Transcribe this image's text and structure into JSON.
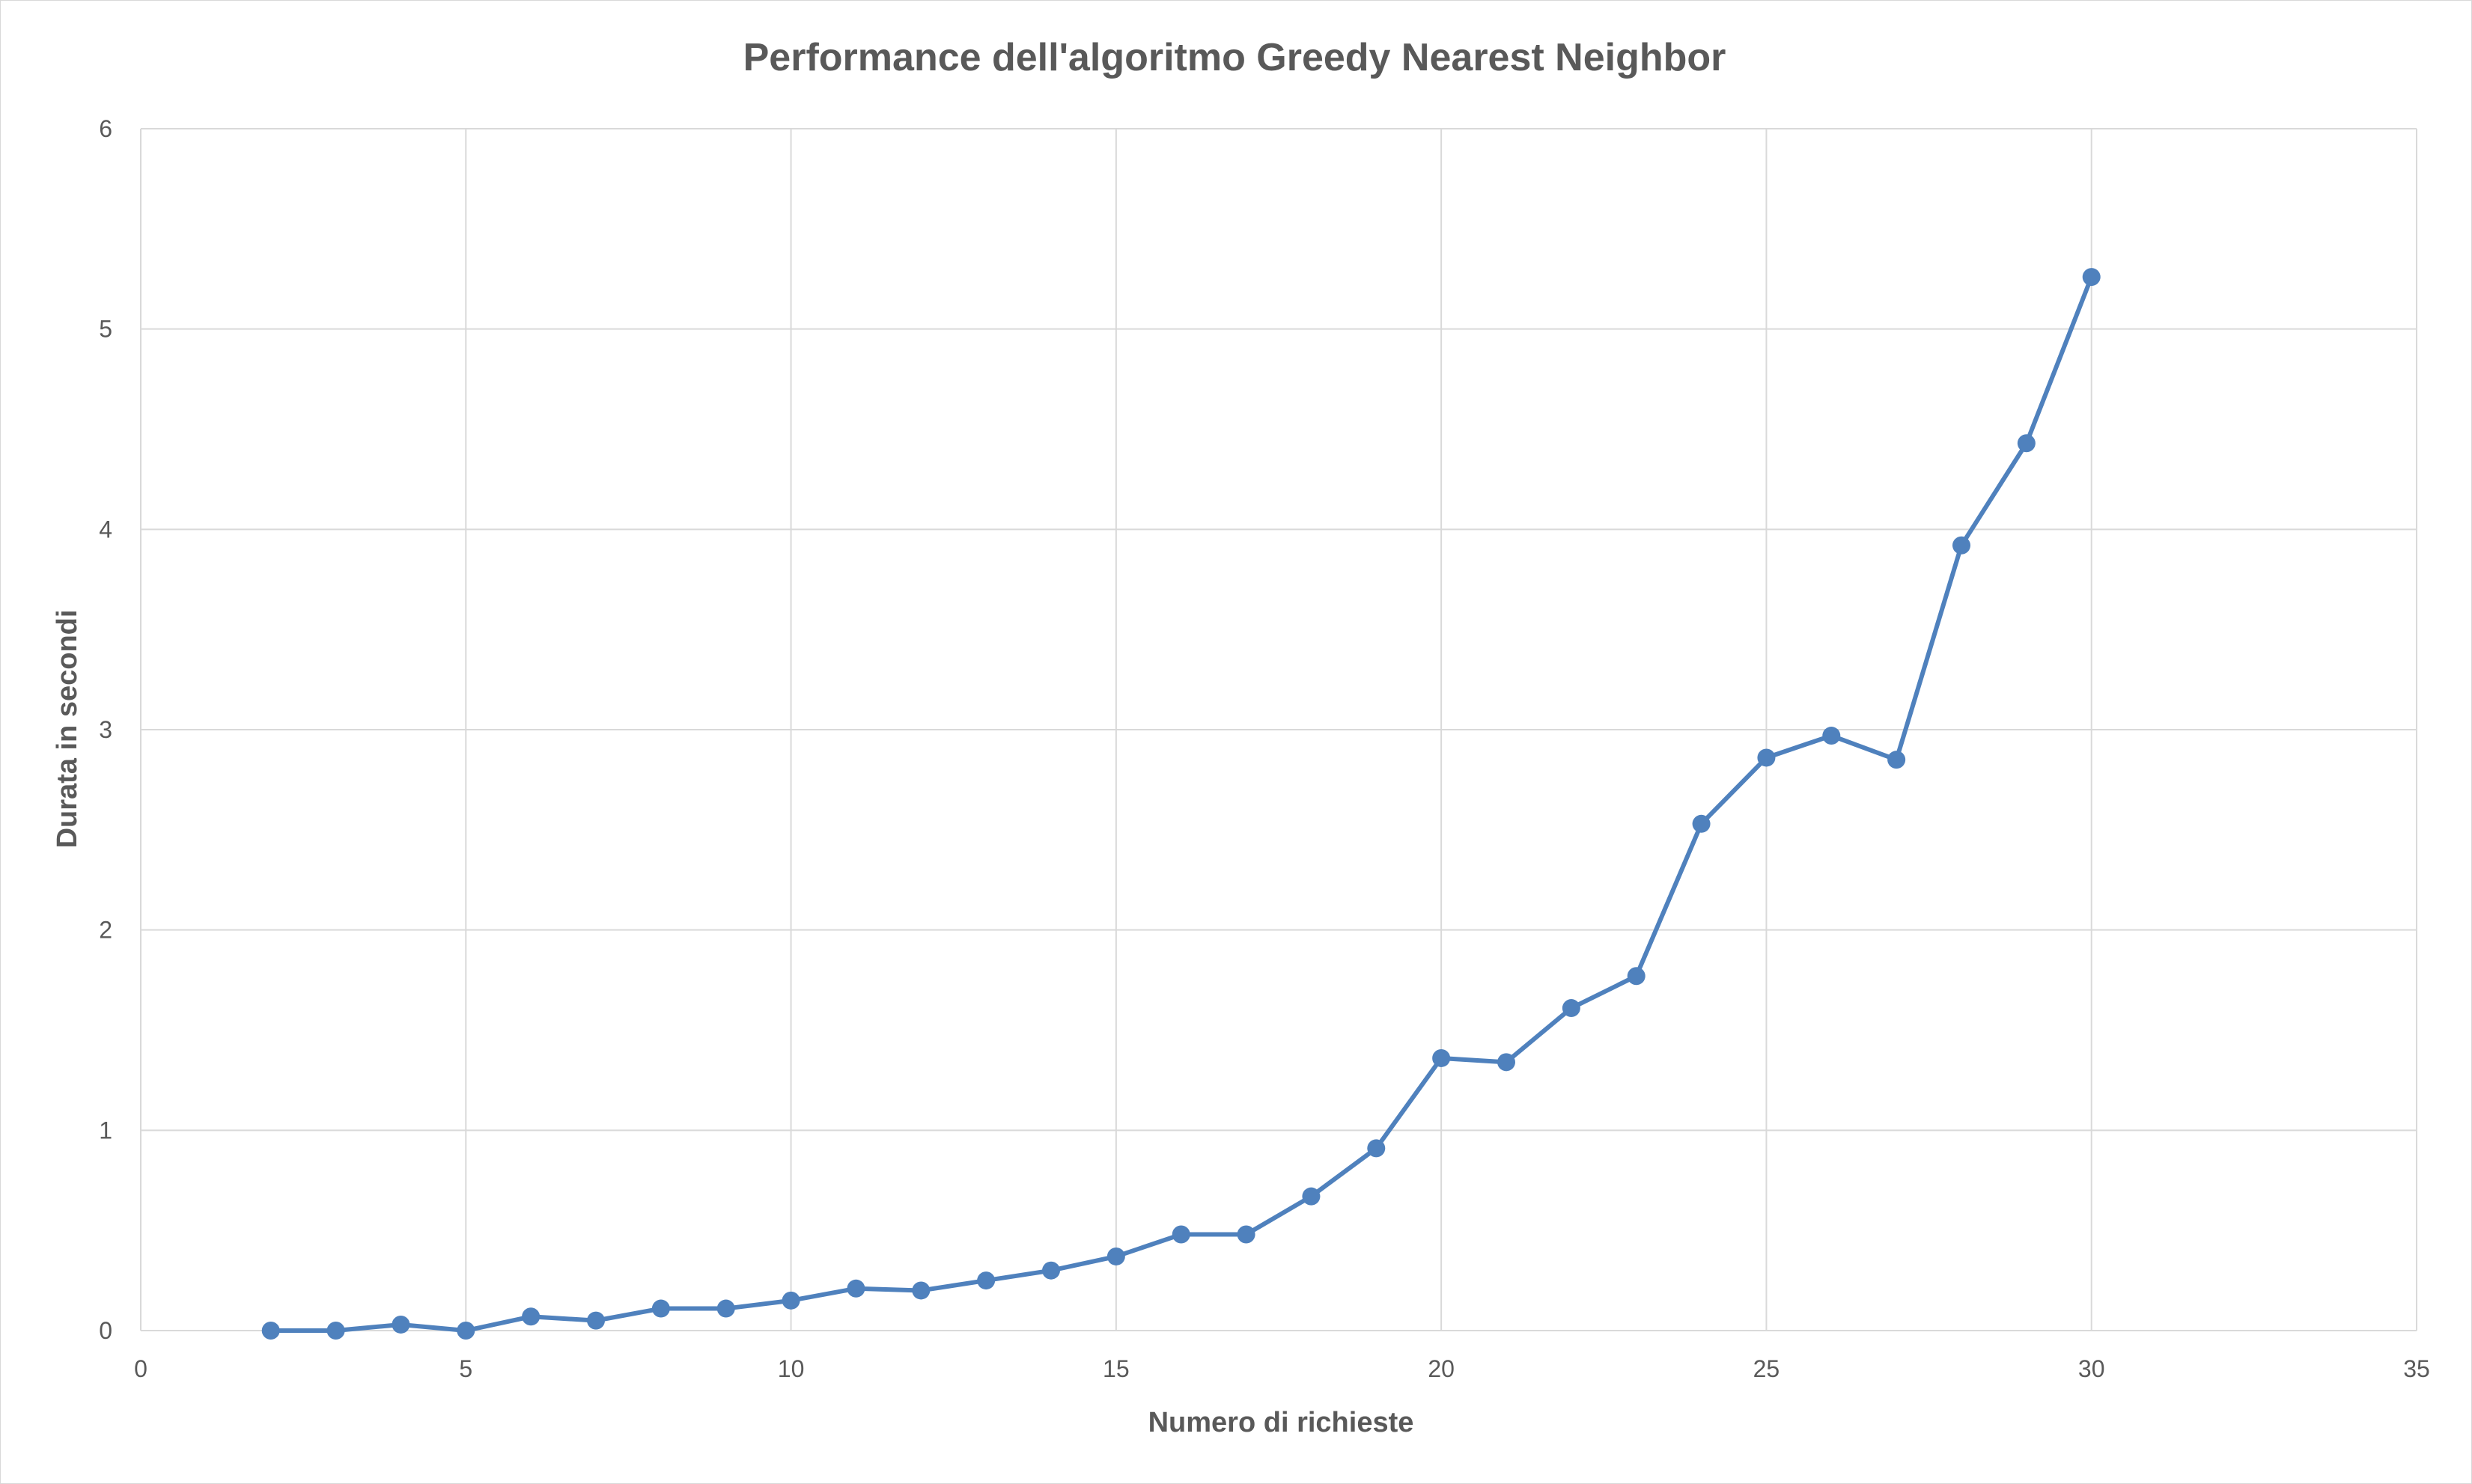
{
  "chart_data": {
    "type": "scatter",
    "title": "Performance dell'algoritmo Greedy Nearest Neighbor",
    "xlabel": "Numero di richieste",
    "ylabel": "Durata in secondi",
    "xlim": [
      0,
      35
    ],
    "ylim": [
      0,
      6
    ],
    "x_ticks": [
      0,
      5,
      10,
      15,
      20,
      25,
      30,
      35
    ],
    "y_ticks": [
      0,
      1,
      2,
      3,
      4,
      5,
      6
    ],
    "grid": true,
    "legend": "none",
    "line_color": "#4F81BD",
    "grid_color": "#D9D9D9",
    "series": [
      {
        "x": [
          2,
          3,
          4,
          5,
          6,
          7,
          8,
          9,
          10,
          11,
          12,
          13,
          14,
          15,
          16,
          17,
          18,
          19,
          20,
          21,
          22,
          23,
          24,
          25,
          26,
          27,
          28,
          29,
          30
        ],
        "y": [
          0.0,
          0.0,
          0.03,
          0.0,
          0.07,
          0.05,
          0.11,
          0.11,
          0.15,
          0.21,
          0.2,
          0.25,
          0.3,
          0.37,
          0.48,
          0.48,
          0.67,
          0.91,
          1.36,
          1.34,
          1.61,
          1.77,
          2.53,
          2.86,
          2.97,
          2.85,
          3.92,
          4.43,
          5.26
        ]
      }
    ]
  }
}
